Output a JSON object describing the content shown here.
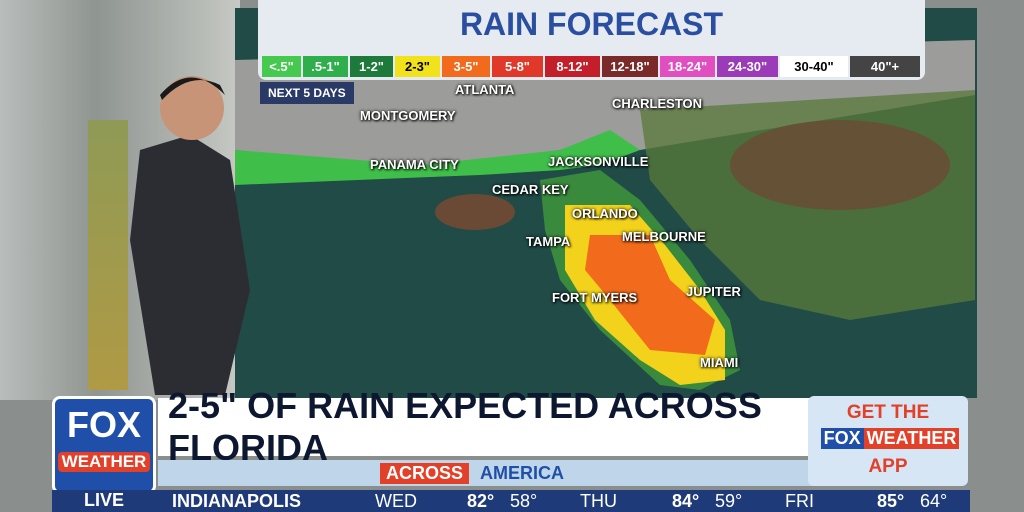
{
  "graphic": {
    "title": "RAIN FORECAST",
    "period": "NEXT 5 DAYS",
    "legend": [
      "<.5\"",
      ".5-1\"",
      "1-2\"",
      "2-3\"",
      "3-5\"",
      "5-8\"",
      "8-12\"",
      "12-18\"",
      "18-24\"",
      "24-30\"",
      "30-40\"",
      "40\"+"
    ]
  },
  "map": {
    "cities": [
      "ATLANTA",
      "MONTGOMERY",
      "CHARLESTON",
      "PANAMA CITY",
      "JACKSONVILLE",
      "CEDAR KEY",
      "ORLANDO",
      "TAMPA",
      "MELBOURNE",
      "JUPITER",
      "FORT MYERS",
      "MIAMI"
    ]
  },
  "lower_third": {
    "logo": {
      "fox": "FOX",
      "weather": "WEATHER",
      "live": "LIVE"
    },
    "headline": "2-5\" OF RAIN EXPECTED ACROSS FLORIDA",
    "banner": [
      "ACROSS",
      "AMERICA"
    ],
    "promo": {
      "line1": "GET THE",
      "brand_fox": "FOX",
      "brand_weather": "WEATHER",
      "line3": "APP"
    }
  },
  "ticker": {
    "city": "INDIANAPOLIS",
    "days": [
      {
        "day": "WED",
        "high": "82°",
        "low": "58°"
      },
      {
        "day": "THU",
        "high": "84°",
        "low": "59°"
      },
      {
        "day": "FRI",
        "high": "85°",
        "low": "64°"
      }
    ]
  }
}
